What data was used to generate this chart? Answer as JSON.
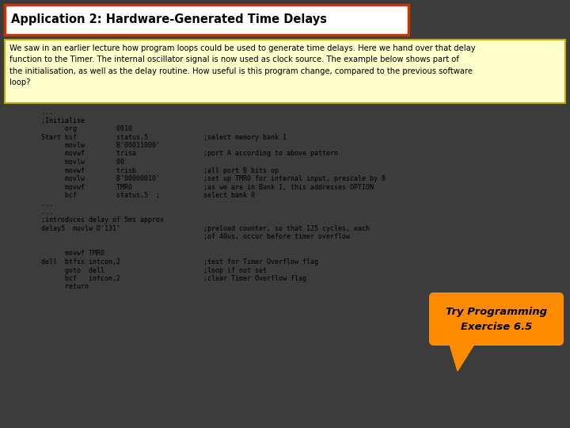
{
  "title": "Application 2: Hardware-Generated Time Delays",
  "title_box_color": "#cc3300",
  "title_bg_color": "#ffffff",
  "desc_box_color": "#ccaa00",
  "desc_bg_color": "#ffffcc",
  "desc_text": "We saw in an earlier lecture how program loops could be used to generate time delays. Here we hand over that delay\nfunction to the Timer. The internal oscillator signal is now used as clock source. The example below shows part of\nthe initialisation, as well as the delay routine. How useful is this program change, compared to the previous software\nloop?",
  "code_lines": [
    "        ...",
    "        ;Initialise",
    "              org          0010",
    "        Start bsf          status,5              ;select memory bank 1",
    "              movlw        B'00011000'",
    "              movwf        trisa                 ;port A according to above pattern",
    "              movlw        00",
    "              movwf        trisb                 ;all port B bits op",
    "              movlw        B'00000010'           ;set up TMR0 for internal input, prescale by 8",
    "              movwf        TMR0                  ;as we are in Bank 1, this addresses OPTION",
    "              bcf          status,5  ;           select bank 0",
    "        ...",
    "        ...",
    "        ;introduces delay of 5ms approx",
    "        delay5  movlw D'131'                     ;preload counter, so that 125 cycles, each",
    "                                                 ;of 40us, occur before timer overflow",
    "",
    "              movwf TMR0",
    "        dell  btfss intcon,2                     ;test for Timer Overflow flag",
    "              goto  dell                         ;loop if not set",
    "              bcf   intcon,2                     ;clear Timer Overflow flag",
    "              return"
  ],
  "callout_text": "Try Programming\nExercise 6.5",
  "callout_bg": "#ff8c00",
  "bg_color": "#3c3c3c"
}
